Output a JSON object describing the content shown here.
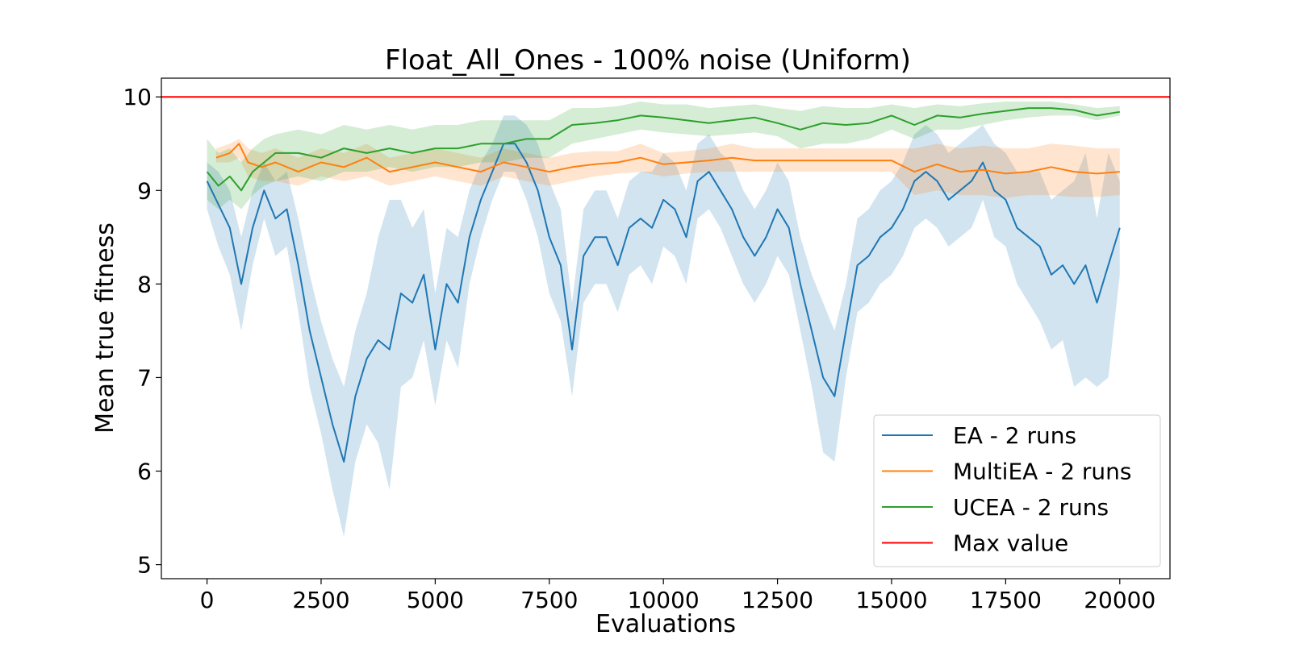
{
  "chart_data": {
    "type": "line",
    "title": "Float_All_Ones - 100% noise (Uniform)",
    "xlabel": "Evaluations",
    "ylabel": "Mean true fitness",
    "xlim": [
      -1000,
      21100
    ],
    "ylim": [
      4.85,
      10.2
    ],
    "xticks": [
      0,
      2500,
      5000,
      7500,
      10000,
      12500,
      15000,
      17500,
      20000
    ],
    "xtick_labels": [
      "0",
      "2500",
      "5000",
      "7500",
      "10000",
      "12500",
      "15000",
      "17500",
      "20000"
    ],
    "yticks": [
      5,
      6,
      7,
      8,
      9,
      10
    ],
    "ytick_labels": [
      "5",
      "6",
      "7",
      "8",
      "9",
      "10"
    ],
    "grid": false,
    "legend_position": "lower-right",
    "series": [
      {
        "name": "EA - 2 runs",
        "color": "#1f77b4",
        "x": [
          0,
          250,
          500,
          750,
          1000,
          1250,
          1500,
          1750,
          2000,
          2250,
          2500,
          2750,
          3000,
          3250,
          3500,
          3750,
          4000,
          4250,
          4500,
          4750,
          5000,
          5250,
          5500,
          5750,
          6000,
          6250,
          6500,
          6750,
          7000,
          7250,
          7500,
          7750,
          8000,
          8250,
          8500,
          8750,
          9000,
          9250,
          9500,
          9750,
          10000,
          10250,
          10500,
          10750,
          11000,
          11250,
          11500,
          11750,
          12000,
          12250,
          12500,
          12750,
          13000,
          13250,
          13500,
          13750,
          14000,
          14250,
          14500,
          14750,
          15000,
          15250,
          15500,
          15750,
          16000,
          16250,
          16500,
          16750,
          17000,
          17250,
          17500,
          17750,
          18000,
          18250,
          18500,
          18750,
          19000,
          19250,
          19500,
          19750,
          20000
        ],
        "values": [
          9.1,
          8.85,
          8.6,
          8.0,
          8.6,
          9.0,
          8.7,
          8.8,
          8.2,
          7.5,
          7.0,
          6.5,
          6.1,
          6.8,
          7.2,
          7.4,
          7.3,
          7.9,
          7.8,
          8.1,
          7.3,
          8.0,
          7.8,
          8.5,
          8.9,
          9.2,
          9.5,
          9.5,
          9.3,
          9.0,
          8.5,
          8.2,
          7.3,
          8.3,
          8.5,
          8.5,
          8.2,
          8.6,
          8.7,
          8.6,
          8.9,
          8.8,
          8.5,
          9.1,
          9.2,
          9.0,
          8.8,
          8.5,
          8.3,
          8.5,
          8.8,
          8.6,
          8.0,
          7.5,
          7.0,
          6.8,
          7.5,
          8.2,
          8.3,
          8.5,
          8.6,
          8.8,
          9.1,
          9.2,
          9.1,
          8.9,
          9.0,
          9.1,
          9.3,
          9.0,
          8.9,
          8.6,
          8.5,
          8.4,
          8.1,
          8.2,
          8.0,
          8.2,
          7.8,
          8.2,
          8.6
        ],
        "lower": [
          8.8,
          8.4,
          8.1,
          7.5,
          8.2,
          8.7,
          8.3,
          8.4,
          7.7,
          6.9,
          6.4,
          5.8,
          5.3,
          6.1,
          6.5,
          6.3,
          5.8,
          6.9,
          7.0,
          7.4,
          6.7,
          7.4,
          7.1,
          8.0,
          8.5,
          8.9,
          9.2,
          9.2,
          8.9,
          8.5,
          7.9,
          7.6,
          6.8,
          7.8,
          8.0,
          8.0,
          7.7,
          8.1,
          8.2,
          8.0,
          8.4,
          8.3,
          8.0,
          8.7,
          8.8,
          8.6,
          8.3,
          8.0,
          7.8,
          8.0,
          8.3,
          8.1,
          7.5,
          6.9,
          6.2,
          6.1,
          7.0,
          7.7,
          7.8,
          8.0,
          8.1,
          8.3,
          8.6,
          8.7,
          8.6,
          8.4,
          8.5,
          8.6,
          8.9,
          8.5,
          8.4,
          8.0,
          7.8,
          7.6,
          7.3,
          7.4,
          6.9,
          7.0,
          6.9,
          7.0,
          8.1
        ],
        "upper": [
          9.3,
          9.2,
          9.0,
          8.5,
          9.0,
          9.3,
          9.1,
          9.2,
          8.7,
          8.1,
          7.6,
          7.2,
          6.9,
          7.5,
          7.9,
          8.5,
          8.9,
          8.9,
          8.6,
          8.8,
          7.9,
          8.6,
          8.5,
          9.0,
          9.3,
          9.5,
          9.8,
          9.8,
          9.7,
          9.5,
          9.1,
          8.8,
          7.8,
          8.8,
          9.0,
          9.0,
          8.7,
          9.1,
          9.2,
          9.2,
          9.4,
          9.3,
          9.0,
          9.5,
          9.6,
          9.4,
          9.3,
          9.0,
          8.8,
          9.0,
          9.3,
          9.1,
          8.5,
          8.1,
          7.8,
          7.5,
          8.0,
          8.7,
          8.8,
          9.0,
          9.1,
          9.3,
          9.6,
          9.7,
          9.6,
          9.4,
          9.5,
          9.6,
          9.7,
          9.5,
          9.4,
          9.2,
          9.2,
          9.2,
          8.9,
          9.0,
          9.1,
          9.4,
          8.7,
          9.4,
          9.1
        ]
      },
      {
        "name": "MultiEA - 2 runs",
        "color": "#ff7f0e",
        "x": [
          200,
          500,
          700,
          900,
          1200,
          1500,
          2000,
          2500,
          3000,
          3500,
          4000,
          4500,
          5000,
          5500,
          6000,
          6500,
          7000,
          7500,
          8000,
          8500,
          9000,
          9500,
          10000,
          10500,
          11000,
          11500,
          12000,
          12500,
          13000,
          13500,
          14000,
          14500,
          15000,
          15500,
          16000,
          16500,
          17000,
          17500,
          18000,
          18500,
          19000,
          19500,
          20000
        ],
        "values": [
          9.35,
          9.4,
          9.5,
          9.3,
          9.25,
          9.3,
          9.2,
          9.3,
          9.25,
          9.35,
          9.2,
          9.25,
          9.3,
          9.25,
          9.2,
          9.3,
          9.25,
          9.2,
          9.25,
          9.28,
          9.3,
          9.35,
          9.28,
          9.3,
          9.32,
          9.35,
          9.32,
          9.32,
          9.32,
          9.32,
          9.32,
          9.32,
          9.32,
          9.2,
          9.28,
          9.2,
          9.22,
          9.18,
          9.2,
          9.25,
          9.2,
          9.18,
          9.2
        ],
        "lower": [
          9.3,
          9.3,
          9.35,
          9.15,
          9.1,
          9.1,
          9.05,
          9.15,
          9.1,
          9.15,
          9.05,
          9.1,
          9.15,
          9.1,
          9.05,
          9.15,
          9.1,
          9.05,
          9.1,
          9.15,
          9.18,
          9.2,
          9.15,
          9.18,
          9.2,
          9.2,
          9.2,
          9.2,
          9.2,
          9.2,
          9.2,
          9.2,
          9.2,
          8.95,
          9.0,
          8.95,
          8.95,
          8.92,
          8.95,
          8.95,
          8.93,
          8.93,
          8.95
        ],
        "upper": [
          9.45,
          9.5,
          9.55,
          9.45,
          9.4,
          9.45,
          9.35,
          9.45,
          9.4,
          9.5,
          9.35,
          9.4,
          9.45,
          9.4,
          9.35,
          9.45,
          9.4,
          9.35,
          9.4,
          9.42,
          9.42,
          9.5,
          9.4,
          9.42,
          9.45,
          9.5,
          9.45,
          9.45,
          9.45,
          9.45,
          9.45,
          9.45,
          9.45,
          9.45,
          9.5,
          9.45,
          9.48,
          9.45,
          9.45,
          9.5,
          9.48,
          9.45,
          9.45
        ]
      },
      {
        "name": "UCEA - 2 runs",
        "color": "#2ca02c",
        "x": [
          0,
          250,
          500,
          750,
          1000,
          1250,
          1500,
          2000,
          2500,
          3000,
          3500,
          4000,
          4500,
          5000,
          5500,
          6000,
          6500,
          7000,
          7500,
          8000,
          8500,
          9000,
          9500,
          10000,
          10500,
          11000,
          11500,
          12000,
          12500,
          13000,
          13500,
          14000,
          14500,
          15000,
          15500,
          16000,
          16500,
          17000,
          17500,
          18000,
          18500,
          19000,
          19500,
          20000
        ],
        "values": [
          9.2,
          9.05,
          9.15,
          9.0,
          9.2,
          9.3,
          9.4,
          9.4,
          9.35,
          9.45,
          9.4,
          9.45,
          9.4,
          9.45,
          9.45,
          9.5,
          9.5,
          9.55,
          9.55,
          9.7,
          9.72,
          9.75,
          9.8,
          9.78,
          9.75,
          9.72,
          9.75,
          9.78,
          9.72,
          9.65,
          9.72,
          9.7,
          9.72,
          9.8,
          9.7,
          9.8,
          9.78,
          9.82,
          9.85,
          9.88,
          9.88,
          9.86,
          9.8,
          9.84
        ],
        "lower": [
          8.9,
          8.8,
          8.9,
          8.8,
          8.95,
          9.05,
          9.1,
          9.15,
          9.1,
          9.2,
          9.2,
          9.25,
          9.2,
          9.25,
          9.25,
          9.3,
          9.3,
          9.35,
          9.35,
          9.5,
          9.55,
          9.6,
          9.65,
          9.62,
          9.6,
          9.58,
          9.6,
          9.62,
          9.58,
          9.45,
          9.5,
          9.5,
          9.55,
          9.65,
          9.55,
          9.65,
          9.65,
          9.7,
          9.75,
          9.78,
          9.8,
          9.8,
          9.75,
          9.8
        ],
        "upper": [
          9.55,
          9.4,
          9.45,
          9.3,
          9.45,
          9.55,
          9.6,
          9.65,
          9.6,
          9.7,
          9.65,
          9.7,
          9.65,
          9.7,
          9.7,
          9.75,
          9.75,
          9.75,
          9.75,
          9.88,
          9.88,
          9.9,
          9.95,
          9.92,
          9.92,
          9.88,
          9.9,
          9.92,
          9.88,
          9.85,
          9.9,
          9.88,
          9.88,
          9.92,
          9.88,
          9.92,
          9.9,
          9.93,
          9.95,
          9.95,
          9.95,
          9.92,
          9.88,
          9.9
        ]
      },
      {
        "name": "Max value",
        "color": "#ff0000",
        "hline": 10
      }
    ]
  }
}
